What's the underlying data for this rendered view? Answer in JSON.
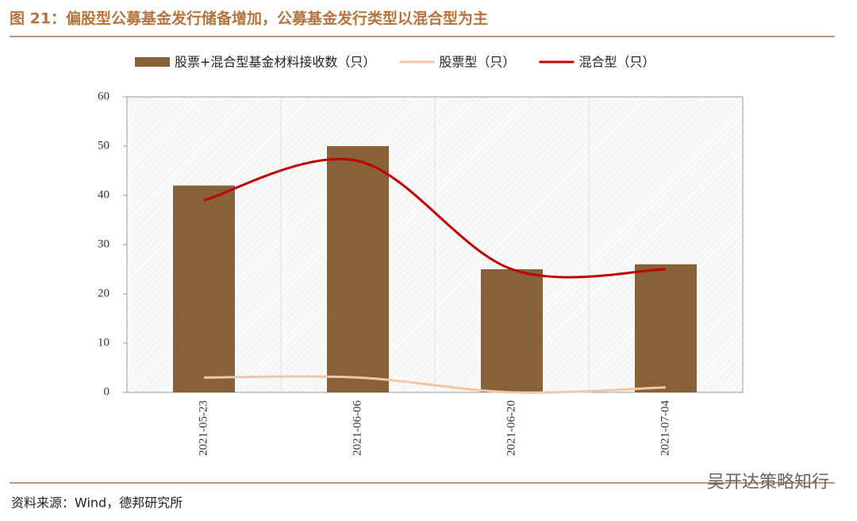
{
  "chart_data": {
    "type": "combo",
    "title": "图 21：偏股型公募基金发行储备增加，公募基金发行类型以混合型为主",
    "source": "资料来源：Wind，德邦研究所",
    "watermark": "吴开达策略知行",
    "categories": [
      "2021-05-23",
      "2021-06-06",
      "2021-06-20",
      "2021-07-04"
    ],
    "series": [
      {
        "name": "股票+混合型基金材料接收数（只）",
        "type": "bar",
        "color": "#86613a",
        "values": [
          42,
          50,
          25,
          26
        ]
      },
      {
        "name": "股票型（只）",
        "type": "line",
        "color": "#f5c6a5",
        "values": [
          3,
          3,
          0,
          1
        ]
      },
      {
        "name": "混合型（只）",
        "type": "line",
        "color": "#c00000",
        "values": [
          39,
          47,
          25,
          25
        ]
      }
    ],
    "ylim": [
      0,
      60
    ],
    "yticks": [
      0,
      10,
      20,
      30,
      40,
      50,
      60
    ],
    "grid": true
  }
}
